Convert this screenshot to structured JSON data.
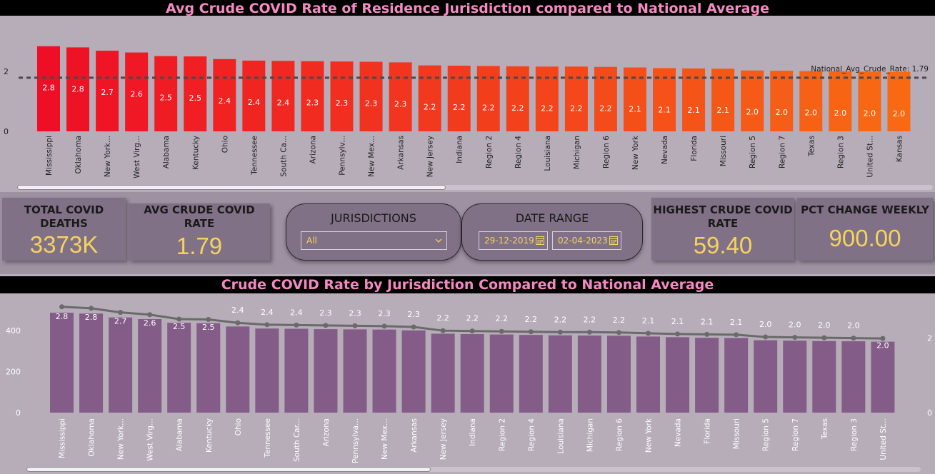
{
  "top_title": "Avg Crude COVID Rate of Residence Jurisdiction compared to National Average",
  "bottom_title": "Crude COVID Rate by Jurisdiction Compared to National Average",
  "cards": {
    "total_deaths_label": "TOTAL COVID DEATHS",
    "total_deaths_value": "3373K",
    "avg_rate_label": "AVG CRUDE COVID RATE",
    "avg_rate_value": "1.79",
    "highest_rate_label": "HIGHEST CRUDE COVID RATE",
    "highest_rate_value": "59.40",
    "pct_change_label": "PCT CHANGE WEEKLY",
    "pct_change_value": "900.00"
  },
  "slicers": {
    "jurisdictions_label": "JURISDICTIONS",
    "jurisdictions_value": "All",
    "date_range_label": "DATE RANGE",
    "date_start": "29-12-2019",
    "date_end": "02-04-2023"
  },
  "colors": {
    "bar_start": "#ee0f26",
    "bar_end": "#f76a13",
    "purple_bar": "#845c88",
    "line": "#6a6a6a",
    "accent_text": "#f5d35f",
    "title_text": "#f58ac2"
  },
  "chart_data": [
    {
      "type": "bar",
      "title": "Avg Crude COVID Rate of Residence Jurisdiction compared to National Average",
      "categories": [
        "Mississippi",
        "Oklahoma",
        "New York...",
        "West Virg...",
        "Alabama",
        "Kentucky",
        "Ohio",
        "Tennessee",
        "South Ca...",
        "Arizona",
        "Pennsylv...",
        "New Mex...",
        "Arkansas",
        "New Jersey",
        "Indiana",
        "Region 2",
        "Region 4",
        "Louisiana",
        "Michigan",
        "Region 6",
        "New York",
        "Nevada",
        "Florida",
        "Missouri",
        "Region 5",
        "Region 7",
        "Texas",
        "Region 3",
        "United St...",
        "Kansas"
      ],
      "values": [
        2.84,
        2.8,
        2.69,
        2.63,
        2.51,
        2.5,
        2.41,
        2.36,
        2.35,
        2.34,
        2.33,
        2.32,
        2.3,
        2.2,
        2.19,
        2.18,
        2.17,
        2.16,
        2.16,
        2.15,
        2.13,
        2.11,
        2.1,
        2.09,
        2.03,
        2.02,
        2.01,
        2.0,
        1.99,
        1.98
      ],
      "data_labels": [
        "2.8",
        "2.8",
        "2.7",
        "2.6",
        "2.5",
        "2.5",
        "2.4",
        "2.4",
        "2.4",
        "2.3",
        "2.3",
        "2.3",
        "2.3",
        "2.2",
        "2.2",
        "2.2",
        "2.2",
        "2.2",
        "2.2",
        "2.2",
        "2.1",
        "2.1",
        "2.1",
        "2.1",
        "2.0",
        "2.0",
        "2.0",
        "2.0",
        "2.0",
        "2.0"
      ],
      "yticks": [
        "0",
        "2"
      ],
      "ylim": [
        0,
        3
      ],
      "reference_line": {
        "label": "National_Avg_Crude_Rate: 1.79",
        "value": 1.79
      },
      "legend": "none",
      "grid": false
    },
    {
      "type": "bar",
      "title": "Crude COVID Rate by Jurisdiction Compared to National Average",
      "categories": [
        "Mississippi",
        "Oklahoma",
        "New York...",
        "West Virg...",
        "Alabama",
        "Kentucky",
        "Ohio",
        "Tennessee",
        "South Car...",
        "Arizona",
        "Pennsylva...",
        "New Mex...",
        "Arkansas",
        "New Jersey",
        "Indiana",
        "Region 2",
        "Region 4",
        "Louisiana",
        "Michigan",
        "Region 6",
        "New York",
        "Nevada",
        "Florida",
        "Missouri",
        "Region 5",
        "Region 7",
        "Texas",
        "Region 3",
        "United St..."
      ],
      "values": [
        486,
        482,
        463,
        455,
        437,
        435,
        419,
        409,
        408,
        406,
        405,
        404,
        400,
        384,
        382,
        380,
        378,
        376,
        375,
        374,
        370,
        367,
        364,
        363,
        352,
        350,
        348,
        347,
        345
      ],
      "line_values": [
        2.84,
        2.8,
        2.69,
        2.63,
        2.51,
        2.5,
        2.41,
        2.36,
        2.35,
        2.34,
        2.33,
        2.32,
        2.3,
        2.2,
        2.19,
        2.18,
        2.17,
        2.16,
        2.16,
        2.15,
        2.13,
        2.11,
        2.1,
        2.09,
        2.03,
        2.02,
        2.01,
        2.0,
        1.99
      ],
      "line_labels": [
        "2.8",
        "2.8",
        "2.7",
        "2.6",
        "2.5",
        "2.5",
        "2.4",
        "2.4",
        "2.4",
        "2.3",
        "2.3",
        "2.3",
        "2.3",
        "2.2",
        "2.2",
        "2.2",
        "2.2",
        "2.2",
        "2.2",
        "2.2",
        "2.1",
        "2.1",
        "2.1",
        "2.1",
        "2.0",
        "2.0",
        "2.0",
        "2.0",
        "2.0"
      ],
      "yticks_left": [
        "0",
        "200",
        "400"
      ],
      "ylim_left": [
        0,
        580
      ],
      "yticks_right": [
        "0",
        "2"
      ],
      "ylim_right": [
        0,
        3.2
      ],
      "legend": "none",
      "grid": false
    }
  ]
}
